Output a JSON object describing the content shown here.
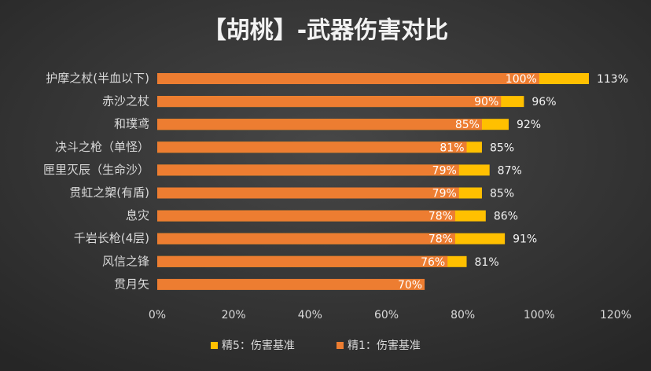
{
  "chart_data": {
    "type": "overlap_hbar",
    "title": "【胡桃】-武器伤害对比",
    "categories": [
      "护摩之杖(半血以下)",
      "赤沙之杖",
      "和璞鸢",
      "决斗之枪（单怪）",
      "匣里灭辰（生命沙）",
      "贯虹之槊(有盾)",
      "息灾",
      "千岩长枪(4层)",
      "风信之锋",
      "贯月矢"
    ],
    "series": [
      {
        "name": "精5：伤害基准",
        "color": "#ffc000",
        "values": [
          113,
          96,
          92,
          85,
          87,
          85,
          86,
          91,
          81,
          null
        ],
        "value_labels": [
          "113%",
          "96%",
          "92%",
          "85%",
          "87%",
          "85%",
          "86%",
          "91%",
          "81%",
          null
        ]
      },
      {
        "name": "精1：伤害基准",
        "color": "#ed7d31",
        "values": [
          100,
          90,
          85,
          81,
          79,
          79,
          78,
          78,
          76,
          70
        ],
        "value_labels": [
          "100%",
          "90%",
          "85%",
          "81%",
          "79%",
          "79%",
          "78%",
          "78%",
          "76%",
          "70%"
        ]
      }
    ],
    "xlim": [
      0,
      120
    ],
    "xticks": [
      {
        "value": 0,
        "label": "0%"
      },
      {
        "value": 20,
        "label": "20%"
      },
      {
        "value": 40,
        "label": "40%"
      },
      {
        "value": 60,
        "label": "60%"
      },
      {
        "value": 80,
        "label": "80%"
      },
      {
        "value": 100,
        "label": "100%"
      },
      {
        "value": 120,
        "label": "120%"
      }
    ],
    "legend": "bottom"
  }
}
